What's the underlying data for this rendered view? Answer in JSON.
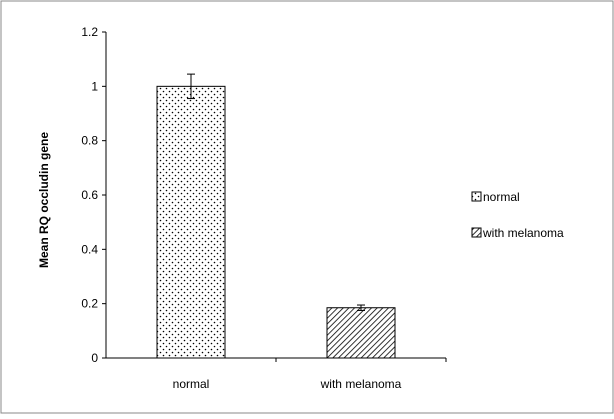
{
  "chart_data": {
    "type": "bar",
    "categories": [
      "normal",
      "with melanoma"
    ],
    "values": [
      1.0,
      0.185
    ],
    "errors": [
      0.045,
      0.01
    ],
    "patterns": [
      "dots",
      "diagonal-hatch"
    ],
    "xlabel": "",
    "ylabel": "Mean RQ occludin gene",
    "ylim": [
      0,
      1.2
    ],
    "yticks": [
      "0",
      "0.2",
      "0.4",
      "0.6",
      "0.8",
      "1",
      "1.2"
    ],
    "ytick_values": [
      0,
      0.2,
      0.4,
      0.6,
      0.8,
      1.0,
      1.2
    ],
    "grid": false,
    "legend": {
      "placement": "right",
      "entries": [
        "normal",
        "with melanoma"
      ]
    }
  }
}
